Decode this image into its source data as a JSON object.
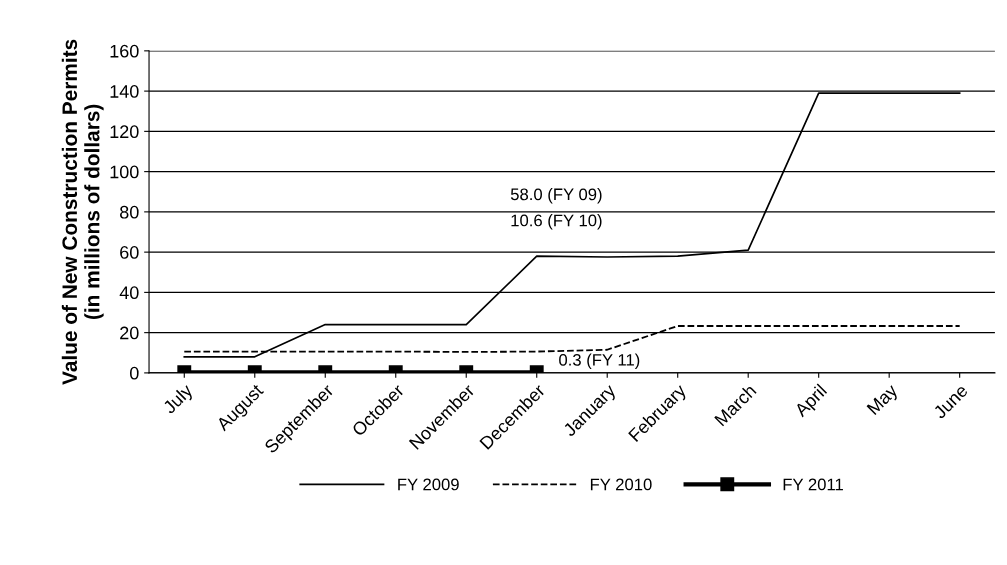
{
  "chart_data": {
    "type": "line",
    "ylabel": "Value of New Construction Permits\n(in millions of dollars)",
    "categories": [
      "July",
      "August",
      "September",
      "October",
      "November",
      "December",
      "January",
      "February",
      "March",
      "April",
      "May",
      "June"
    ],
    "series": [
      {
        "name": "FY 2009",
        "color": "#000000",
        "line_style": "solid",
        "marker": "none",
        "values": [
          8,
          8,
          24,
          24,
          24,
          58.0,
          57.6,
          58,
          61,
          139,
          139,
          139
        ]
      },
      {
        "name": "FY 2010",
        "color": "#000000",
        "line_style": "dashed",
        "marker": "none",
        "values": [
          10.6,
          10.6,
          10.6,
          10.6,
          10.4,
          10.6,
          11.5,
          23.3,
          23.3,
          23.3,
          23.3,
          23.3
        ]
      },
      {
        "name": "FY 2011",
        "color": "#000000",
        "line_style": "solid",
        "marker": "square",
        "values": [
          0.3,
          0.3,
          0.3,
          0.3,
          0.3,
          0.3,
          null,
          null,
          null,
          null,
          null,
          null
        ]
      }
    ],
    "annotations": [
      "58.0 (FY 09)",
      "10.6 (FY 10)",
      "0.3 (FY 11)"
    ],
    "ylim": [
      0,
      160
    ],
    "yticks": [
      0,
      20,
      40,
      60,
      80,
      100,
      120,
      140,
      160
    ],
    "grid": "y",
    "legend": "bottom"
  }
}
